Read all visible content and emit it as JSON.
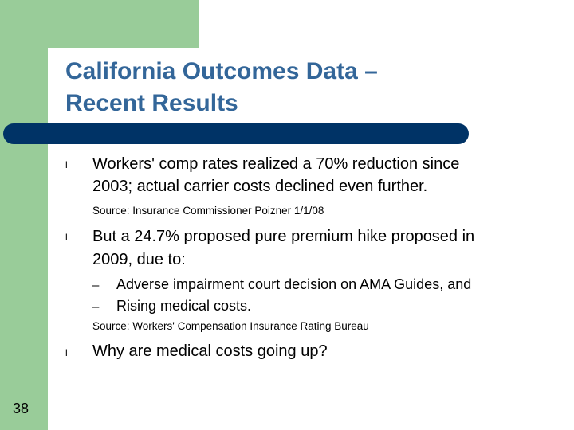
{
  "slide": {
    "title_line1": "California Outcomes Data –",
    "title_line2": "Recent Results",
    "page_number": "38",
    "bullets": [
      {
        "line1": "Workers' comp rates realized a 70% reduction since",
        "line2": "2003; actual carrier costs declined even further."
      },
      {
        "line1": "But a 24.7% proposed pure premium hike proposed in",
        "line2": "2009, due to:"
      },
      {
        "line1": "Why are medical costs going up?"
      }
    ],
    "sources": [
      "Source: Insurance Commissioner Poizner 1/1/08",
      "Source: Workers' Compensation Insurance Rating Bureau"
    ],
    "sub_bullets": [
      "Adverse impairment court decision on AMA Guides, and",
      "Rising medical costs."
    ],
    "bullet_glyph": "l",
    "dash_glyph": "–"
  },
  "colors": {
    "accent_green": "#99cc99",
    "title_blue": "#336699",
    "bar_navy": "#003366"
  }
}
